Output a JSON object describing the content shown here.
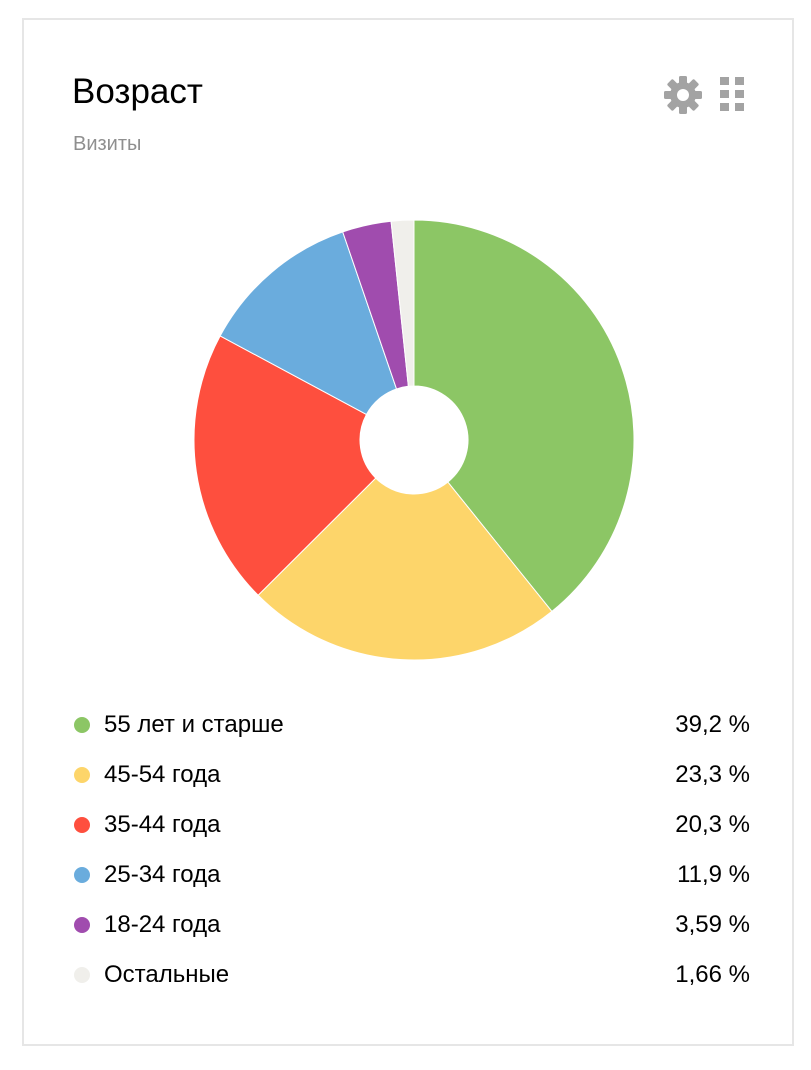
{
  "widget": {
    "title": "Возраст",
    "subtitle": "Визиты",
    "settings_icon": "gear-icon",
    "drag_icon": "drag-handle-icon"
  },
  "chart_data": {
    "type": "pie",
    "donut": true,
    "start": "top",
    "direction": "clockwise",
    "legend": "bottom",
    "slices": [
      {
        "label": "55 лет и старше",
        "value": 39.2,
        "display": "39,2 %",
        "color": "#8cc665"
      },
      {
        "label": "45-54 года",
        "value": 23.3,
        "display": "23,3 %",
        "color": "#fdd56a"
      },
      {
        "label": "35-44 года",
        "value": 20.3,
        "display": "20,3 %",
        "color": "#fe4f3e"
      },
      {
        "label": "25-34 года",
        "value": 11.9,
        "display": "11,9 %",
        "color": "#6aacdd"
      },
      {
        "label": "18-24 года",
        "value": 3.59,
        "display": "3,59 %",
        "color": "#a04cae"
      },
      {
        "label": "Остальные",
        "value": 1.66,
        "display": "1,66 %",
        "color": "#f0efeb"
      }
    ]
  }
}
